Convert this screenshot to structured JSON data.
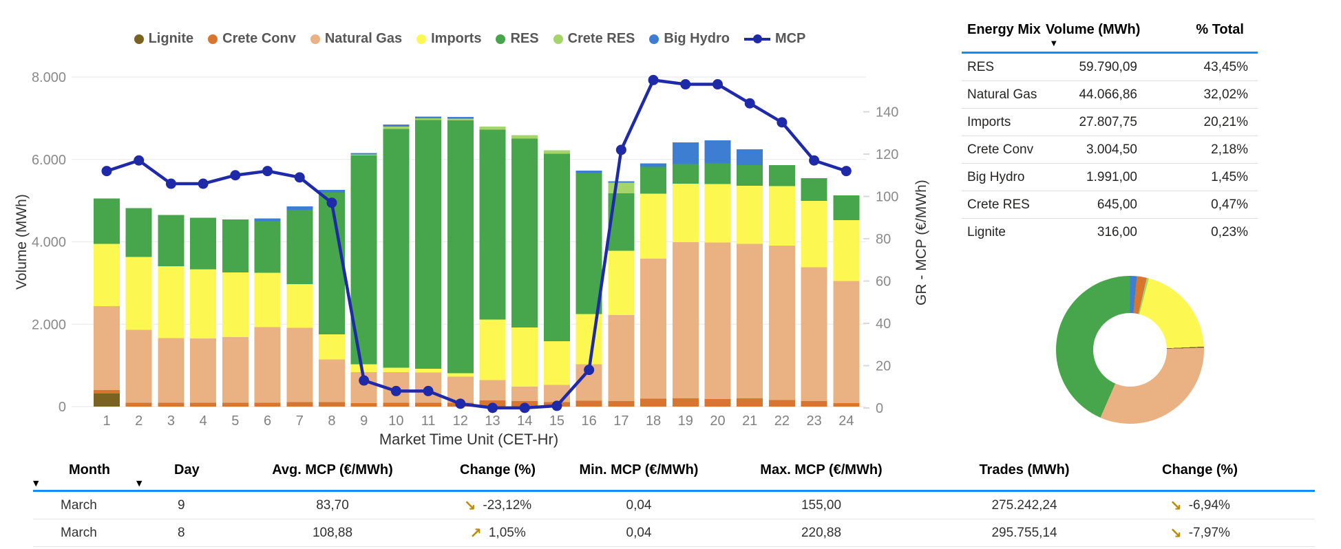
{
  "colors": {
    "mcp_line": "#1f2aa8",
    "header_underline": "#118dff",
    "kpi_arrow": "#bd8b00",
    "grid": "#ebebeb",
    "tick_text": "#8a8a8a",
    "x_tick_text": "#808080",
    "axis_title": "#333333",
    "legend_text": "#575757"
  },
  "chart_data": {
    "type": "bar",
    "subtype": "stacked-bar-with-line",
    "title": "",
    "x_title": "Market Time Unit (CET-Hr)",
    "y_left_title": "Volume (MWh)",
    "y_right_title": "GR - MCP (€/MWh)",
    "y_left_ticks": [
      "0",
      "2.000",
      "4.000",
      "6.000",
      "8.000"
    ],
    "y_left_tick_values": [
      0,
      2000,
      4000,
      6000,
      8000
    ],
    "y_left_range": [
      0,
      8000
    ],
    "y_right_ticks": [
      "0",
      "20",
      "40",
      "60",
      "80",
      "100",
      "120",
      "140"
    ],
    "y_right_tick_values": [
      0,
      20,
      40,
      60,
      80,
      100,
      120,
      140
    ],
    "y_right_range": [
      0,
      156
    ],
    "grid": true,
    "legend_position": "top-center",
    "categories": [
      1,
      2,
      3,
      4,
      5,
      6,
      7,
      8,
      9,
      10,
      11,
      12,
      13,
      14,
      15,
      16,
      17,
      18,
      19,
      20,
      21,
      22,
      23,
      24
    ],
    "series": [
      {
        "name": "Lignite",
        "color": "#7a6320",
        "values": [
          316,
          0,
          0,
          0,
          0,
          0,
          0,
          0,
          0,
          0,
          0,
          0,
          0,
          0,
          0,
          0,
          0,
          0,
          0,
          0,
          0,
          0,
          0,
          0
        ]
      },
      {
        "name": "Crete Conv",
        "color": "#d8762f",
        "values": [
          85,
          95,
          95,
          95,
          95,
          95,
          110,
          110,
          85,
          90,
          90,
          90,
          150,
          130,
          110,
          140,
          130,
          190,
          200,
          185,
          200,
          155,
          130,
          85
        ]
      },
      {
        "name": "Natural Gas",
        "color": "#eab182",
        "values": [
          2040,
          1765,
          1570,
          1555,
          1595,
          1835,
          1805,
          1030,
          750,
          745,
          740,
          640,
          490,
          355,
          420,
          890,
          2090,
          3400,
          3790,
          3800,
          3750,
          3750,
          3250,
          2960
        ]
      },
      {
        "name": "Imports",
        "color": "#fdf851",
        "values": [
          1505,
          1775,
          1745,
          1685,
          1570,
          1315,
          1055,
          610,
          195,
          110,
          90,
          80,
          1470,
          1435,
          1055,
          1220,
          1560,
          1580,
          1420,
          1415,
          1410,
          1445,
          1610,
          1485
        ]
      },
      {
        "name": "RES",
        "color": "#47a64c",
        "values": [
          1110,
          1185,
          1240,
          1250,
          1280,
          1255,
          1805,
          3445,
          5065,
          5795,
          6040,
          6140,
          4610,
          4585,
          4555,
          3420,
          1400,
          650,
          480,
          500,
          500,
          510,
          555,
          600
        ]
      },
      {
        "name": "Crete RES",
        "color": "#a4d46a",
        "values": [
          0,
          0,
          0,
          0,
          0,
          0,
          0,
          0,
          30,
          55,
          40,
          40,
          80,
          80,
          80,
          0,
          260,
          0,
          0,
          0,
          0,
          0,
          0,
          0
        ]
      },
      {
        "name": "Big Hydro",
        "color": "#3d7ed3",
        "values": [
          0,
          0,
          0,
          0,
          0,
          65,
          85,
          65,
          30,
          50,
          40,
          40,
          0,
          0,
          0,
          55,
          30,
          85,
          520,
          560,
          385,
          0,
          0,
          0
        ]
      }
    ],
    "line_series": {
      "name": "MCP",
      "color": "#1f2aa8",
      "values": [
        112,
        117,
        106,
        106,
        110,
        112,
        109,
        97,
        13,
        8,
        8,
        2,
        0.04,
        0.04,
        1,
        18,
        122,
        155,
        153,
        153,
        144,
        135,
        117,
        112
      ]
    }
  },
  "energy_mix_table": {
    "headers": [
      "Energy Mix",
      "Volume (MWh)",
      "% Total"
    ],
    "sort_column": "Volume (MWh)",
    "sort_icon": "▼",
    "rows": [
      {
        "name": "RES",
        "volume": "59.790,09",
        "pct": "43,45%"
      },
      {
        "name": "Natural Gas",
        "volume": "44.066,86",
        "pct": "32,02%"
      },
      {
        "name": "Imports",
        "volume": "27.807,75",
        "pct": "20,21%"
      },
      {
        "name": "Crete Conv",
        "volume": "3.004,50",
        "pct": "2,18%"
      },
      {
        "name": "Big Hydro",
        "volume": "1.991,00",
        "pct": "1,45%"
      },
      {
        "name": "Crete RES",
        "volume": "645,00",
        "pct": "0,47%"
      },
      {
        "name": "Lignite",
        "volume": "316,00",
        "pct": "0,23%"
      }
    ]
  },
  "donut_chart": {
    "type": "pie",
    "start_angle_deg": 0,
    "clockwise": true,
    "slices": [
      {
        "name": "Big Hydro",
        "pct": 1.45,
        "color": "#3d7ed3"
      },
      {
        "name": "Crete Conv",
        "pct": 2.18,
        "color": "#d8762f"
      },
      {
        "name": "Crete RES",
        "pct": 0.47,
        "color": "#a4d46a"
      },
      {
        "name": "Imports",
        "pct": 20.21,
        "color": "#fdf851"
      },
      {
        "name": "Lignite",
        "pct": 0.23,
        "color": "#7a6320"
      },
      {
        "name": "Natural Gas",
        "pct": 32.02,
        "color": "#eab182"
      },
      {
        "name": "RES",
        "pct": 43.45,
        "color": "#47a64c"
      }
    ]
  },
  "mcp_table": {
    "headers": [
      "Month",
      "Day",
      "Avg. MCP (€/MWh)",
      "Change (%)",
      "Min. MCP (€/MWh)",
      "Max. MCP (€/MWh)",
      "Trades (MWh)",
      "Change (%)"
    ],
    "sort_icon": "▼",
    "arrow_up": "↗",
    "arrow_down": "↘",
    "rows": [
      {
        "month": "March",
        "day": "9",
        "avg": "83,70",
        "change": "-23,12%",
        "change_dir": "down",
        "min": "0,04",
        "max": "155,00",
        "trades": "275.242,24",
        "change2": "-6,94%",
        "change2_dir": "down"
      },
      {
        "month": "March",
        "day": "8",
        "avg": "108,88",
        "change": "1,05%",
        "change_dir": "up",
        "min": "0,04",
        "max": "220,88",
        "trades": "295.755,14",
        "change2": "-7,97%",
        "change2_dir": "down"
      }
    ]
  }
}
